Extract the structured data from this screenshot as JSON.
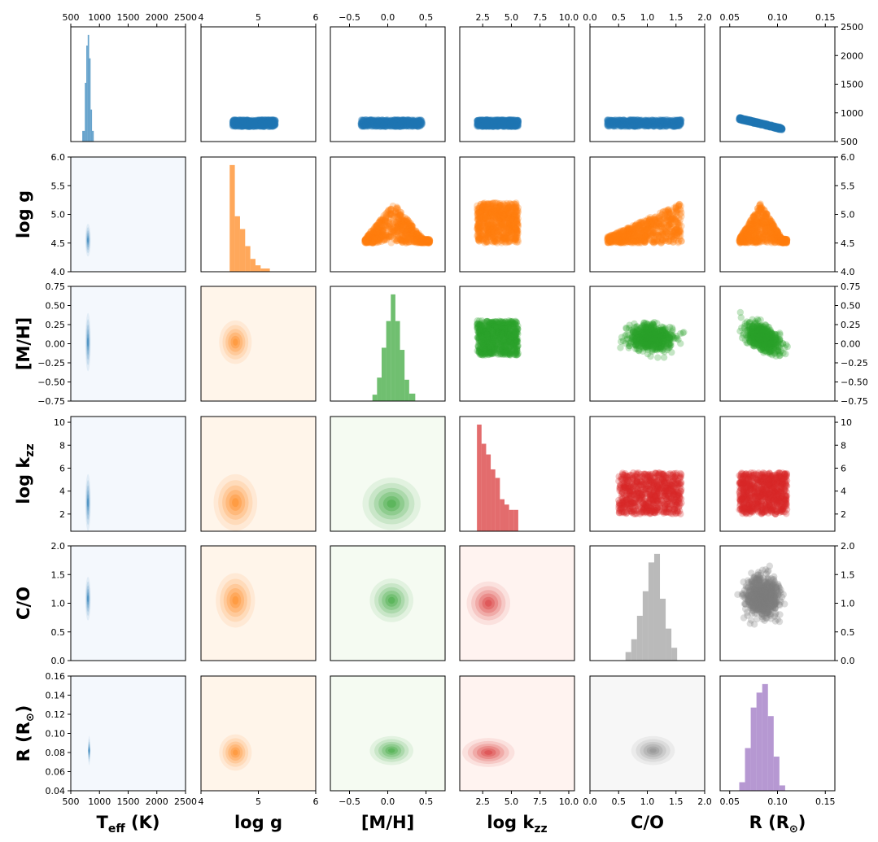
{
  "chart_data": {
    "type": "corner-plot",
    "parameters": [
      {
        "key": "teff",
        "label": "T",
        "label_sub": "eff",
        "label_suffix": " (K)",
        "range": [
          500,
          2500
        ],
        "ticks": [
          500,
          1000,
          1500,
          2000,
          2500
        ],
        "tick_labels": [
          "500",
          "1000",
          "1500",
          "2000",
          "2500"
        ],
        "hist": {
          "bins": [
            700,
            745,
            770,
            795,
            820,
            845,
            870,
            900
          ],
          "counts": [
            10,
            55,
            90,
            100,
            78,
            30,
            10
          ]
        }
      },
      {
        "key": "logg",
        "label": "log g",
        "label_sub": "",
        "label_suffix": "",
        "range": [
          4.0,
          6.0
        ],
        "ticks": [
          4,
          5,
          6
        ],
        "tick_labels": [
          "4",
          "5",
          "6"
        ],
        "ytick_vals": [
          4.0,
          4.5,
          5.0,
          5.5,
          6.0
        ],
        "ytick_labels": [
          "4.0",
          "4.5",
          "5.0",
          "5.5",
          "6.0"
        ],
        "hist": {
          "bins": [
            4.5,
            4.59,
            4.68,
            4.77,
            4.86,
            4.95,
            5.04,
            5.2
          ],
          "counts": [
            100,
            52,
            40,
            24,
            12,
            6,
            3
          ]
        }
      },
      {
        "key": "mh",
        "label": "[M/H]",
        "label_sub": "",
        "label_suffix": "",
        "range": [
          -0.75,
          0.75
        ],
        "ticks": [
          -0.5,
          0.0,
          0.5
        ],
        "tick_labels": [
          "−0.5",
          "0.0",
          "0.5"
        ],
        "ytick_vals": [
          -0.75,
          -0.5,
          -0.25,
          0.0,
          0.25,
          0.5,
          0.75
        ],
        "ytick_labels": [
          "−0.75",
          "−0.50",
          "−0.25",
          "0.00",
          "0.25",
          "0.50",
          "0.75"
        ],
        "hist": {
          "bins": [
            -0.2,
            -0.14,
            -0.08,
            -0.02,
            0.04,
            0.1,
            0.16,
            0.22,
            0.28,
            0.36
          ],
          "counts": [
            6,
            22,
            50,
            75,
            100,
            75,
            48,
            20,
            7
          ]
        }
      },
      {
        "key": "logkzz",
        "label": "log k",
        "label_sub": "zz",
        "label_suffix": "",
        "range": [
          0.5,
          10.5
        ],
        "ticks": [
          2.5,
          5.0,
          7.5,
          10.0
        ],
        "tick_labels": [
          "2.5",
          "5.0",
          "7.5",
          "10.0"
        ],
        "ytick_vals": [
          2,
          4,
          6,
          8,
          10
        ],
        "ytick_labels": [
          "2",
          "4",
          "6",
          "8",
          "10"
        ],
        "hist": {
          "bins": [
            2.0,
            2.4,
            2.8,
            3.2,
            3.6,
            4.0,
            4.4,
            4.8,
            5.2,
            5.6
          ],
          "counts": [
            100,
            82,
            72,
            58,
            50,
            30,
            25,
            20,
            20
          ]
        }
      },
      {
        "key": "co",
        "label": "C/O",
        "label_sub": "",
        "label_suffix": "",
        "range": [
          0.0,
          2.0
        ],
        "ticks": [
          0.0,
          0.5,
          1.0,
          1.5,
          2.0
        ],
        "tick_labels": [
          "0.0",
          "0.5",
          "1.0",
          "1.5",
          "2.0"
        ],
        "ytick_vals": [
          0.0,
          0.5,
          1.0,
          1.5,
          2.0
        ],
        "ytick_labels": [
          "0.0",
          "0.5",
          "1.0",
          "1.5",
          "2.0"
        ],
        "hist": {
          "bins": [
            0.62,
            0.72,
            0.82,
            0.92,
            1.02,
            1.12,
            1.22,
            1.32,
            1.42,
            1.52
          ],
          "counts": [
            8,
            20,
            42,
            65,
            92,
            100,
            58,
            30,
            12
          ]
        }
      },
      {
        "key": "radius",
        "label": "R (R",
        "label_sub": "",
        "label_suffix": ")",
        "range": [
          0.04,
          0.16
        ],
        "ticks": [
          0.05,
          0.1,
          0.15
        ],
        "tick_labels": [
          "0.05",
          "0.10",
          "0.15"
        ],
        "ytick_vals": [
          0.04,
          0.06,
          0.08,
          0.1,
          0.12,
          0.14,
          0.16
        ],
        "ytick_labels": [
          "0.04",
          "0.06",
          "0.08",
          "0.10",
          "0.12",
          "0.14",
          "0.16"
        ],
        "hist": {
          "bins": [
            0.06,
            0.066,
            0.072,
            0.078,
            0.084,
            0.09,
            0.096,
            0.102,
            0.108
          ],
          "counts": [
            8,
            40,
            78,
            92,
            100,
            70,
            32,
            5
          ]
        }
      }
    ],
    "top_axis_ticks": [
      {
        "ticks": [
          500,
          1000,
          1500,
          2000,
          2500
        ],
        "labels": [
          "500",
          "1000",
          "1500",
          "2000",
          "2500"
        ]
      },
      {
        "ticks": [
          4,
          5,
          6
        ],
        "labels": [
          "4",
          "5",
          "6"
        ]
      },
      {
        "ticks": [
          -0.5,
          0.0,
          0.5
        ],
        "labels": [
          "−0.5",
          "0.0",
          "0.5"
        ]
      },
      {
        "ticks": [
          2.5,
          5.0,
          7.5,
          10.0
        ],
        "labels": [
          "2.5",
          "5.0",
          "7.5",
          "10.0"
        ]
      },
      {
        "ticks": [
          0.0,
          0.5,
          1.0,
          1.5,
          2.0
        ],
        "labels": [
          "0.0",
          "0.5",
          "1.0",
          "1.5",
          "2.0"
        ]
      },
      {
        "ticks": [
          0.05,
          0.1,
          0.15
        ],
        "labels": [
          "0.05",
          "0.10",
          "0.15"
        ]
      }
    ],
    "right_axis_ticks": [
      {
        "ticks": [
          500,
          1000,
          1500,
          2000,
          2500
        ],
        "labels": [
          "500",
          "1000",
          "1500",
          "2000",
          "2500"
        ]
      },
      {
        "ticks": [
          4.0,
          4.5,
          5.0,
          5.5,
          6.0
        ],
        "labels": [
          "4.0",
          "4.5",
          "5.0",
          "5.5",
          "6.0"
        ]
      },
      {
        "ticks": [
          -0.75,
          -0.5,
          -0.25,
          0.0,
          0.25,
          0.5,
          0.75
        ],
        "labels": [
          "−0.75",
          "−0.50",
          "−0.25",
          "0.00",
          "0.25",
          "0.50",
          "0.75"
        ]
      },
      {
        "ticks": [
          2,
          4,
          6,
          8,
          10
        ],
        "labels": [
          "2",
          "4",
          "6",
          "8",
          "10"
        ]
      },
      {
        "ticks": [
          0.0,
          0.5,
          1.0,
          1.5,
          2.0
        ],
        "labels": [
          "0.0",
          "0.5",
          "1.0",
          "1.5",
          "2.0"
        ]
      }
    ],
    "row_colors": [
      "#1f77b4",
      "#ff7f0e",
      "#2ca02c",
      "#d62728",
      "#7f7f7f",
      "#9467bd"
    ],
    "hist_colors": [
      "#1f77b4",
      "#ff7f0e",
      "#2ca02c",
      "#d62728",
      "#999999",
      "#9467bd"
    ],
    "kde_bg": [
      "#f4f8fd",
      "#fff5ea",
      "#f5fbf2",
      "#fff3f0",
      "#f7f7f7",
      "#ffffff"
    ],
    "scatter_blobs": {
      "0-1": {
        "x": [
          4.55,
          5.3
        ],
        "y": [
          760,
          880
        ],
        "shape": "band"
      },
      "0-2": {
        "x": [
          -0.35,
          0.45
        ],
        "y": [
          760,
          880
        ],
        "shape": "band"
      },
      "0-3": {
        "x": [
          2.0,
          5.6
        ],
        "y": [
          760,
          880
        ],
        "shape": "band"
      },
      "0-4": {
        "x": [
          0.3,
          1.6
        ],
        "y": [
          760,
          880
        ],
        "shape": "band"
      },
      "0-5": {
        "x": [
          0.06,
          0.105
        ],
        "y": [
          720,
          900
        ],
        "shape": "diag"
      },
      "1-2": {
        "x": [
          -0.3,
          0.55
        ],
        "y": [
          4.5,
          5.2
        ],
        "shape": "tri"
      },
      "1-3": {
        "x": [
          2.0,
          5.6
        ],
        "y": [
          4.5,
          5.2
        ],
        "shape": "rect"
      },
      "1-4": {
        "x": [
          0.3,
          1.6
        ],
        "y": [
          4.5,
          5.2
        ],
        "shape": "ramp"
      },
      "1-5": {
        "x": [
          0.06,
          0.11
        ],
        "y": [
          4.5,
          5.2
        ],
        "shape": "tri"
      },
      "2-3": {
        "x": [
          2.0,
          5.6
        ],
        "y": [
          -0.15,
          0.3
        ],
        "shape": "rect"
      },
      "2-4": {
        "x": [
          0.5,
          1.6
        ],
        "y": [
          -0.18,
          0.32
        ],
        "shape": "blob"
      },
      "2-5": {
        "x": [
          0.06,
          0.11
        ],
        "y": [
          -0.15,
          0.3
        ],
        "shape": "blobdiag"
      },
      "3-4": {
        "x": [
          0.5,
          1.6
        ],
        "y": [
          2.0,
          5.6
        ],
        "shape": "rect"
      },
      "3-5": {
        "x": [
          0.06,
          0.11
        ],
        "y": [
          2.0,
          5.6
        ],
        "shape": "rect"
      },
      "4-5": {
        "x": [
          0.06,
          0.11
        ],
        "y": [
          0.6,
          1.6
        ],
        "shape": "blob"
      }
    },
    "kde_centers": {
      "1-0": {
        "cx": 800,
        "cy": 4.55,
        "sx": 25,
        "sy": 0.15
      },
      "2-0": {
        "cx": 800,
        "cy": 0.02,
        "sx": 25,
        "sy": 0.2
      },
      "2-1": {
        "cx": 4.6,
        "cy": 0.02,
        "sx": 0.15,
        "sy": 0.15
      },
      "3-0": {
        "cx": 800,
        "cy": 3.0,
        "sx": 25,
        "sy": 1.3
      },
      "3-1": {
        "cx": 4.6,
        "cy": 3.0,
        "sx": 0.2,
        "sy": 1.3
      },
      "3-2": {
        "cx": 0.05,
        "cy": 2.9,
        "sx": 0.2,
        "sy": 1.2
      },
      "4-0": {
        "cx": 800,
        "cy": 1.08,
        "sx": 25,
        "sy": 0.2
      },
      "4-1": {
        "cx": 4.6,
        "cy": 1.05,
        "sx": 0.18,
        "sy": 0.25
      },
      "4-2": {
        "cx": 0.05,
        "cy": 1.05,
        "sx": 0.15,
        "sy": 0.2
      },
      "4-3": {
        "cx": 3.0,
        "cy": 1.0,
        "sx": 1.0,
        "sy": 0.2
      },
      "5-0": {
        "cx": 820,
        "cy": 0.082,
        "sx": 10,
        "sy": 0.008
      },
      "5-1": {
        "cx": 4.6,
        "cy": 0.08,
        "sx": 0.15,
        "sy": 0.01
      },
      "5-2": {
        "cx": 0.05,
        "cy": 0.082,
        "sx": 0.15,
        "sy": 0.008
      },
      "5-3": {
        "cx": 3.0,
        "cy": 0.08,
        "sx": 1.2,
        "sy": 0.008
      },
      "5-4": {
        "cx": 1.1,
        "cy": 0.082,
        "sx": 0.2,
        "sy": 0.008
      }
    }
  }
}
